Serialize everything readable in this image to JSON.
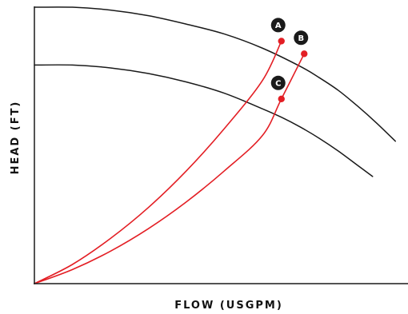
{
  "chart_data": {
    "type": "line",
    "xlabel": "FLOW (USGPM)",
    "ylabel": "HEAD (FT)",
    "grid": false,
    "legend": "none",
    "xlim": [
      0,
      100
    ],
    "ylim": [
      0,
      100
    ],
    "series": [
      {
        "role": "pump-curve",
        "color": "#1a1a1a",
        "x": [
          0,
          10,
          20,
          30,
          40,
          50,
          60,
          70,
          75,
          80,
          85,
          90,
          95
        ],
        "y": [
          98.0,
          98.0,
          97.0,
          95.0,
          92.0,
          88.5,
          83.5,
          77.0,
          73.0,
          68.5,
          63.0,
          57.0,
          50.5
        ]
      },
      {
        "role": "pump-curve",
        "color": "#1a1a1a",
        "x": [
          0,
          10,
          20,
          30,
          40,
          50,
          60,
          65,
          70,
          75,
          80,
          85,
          89
        ],
        "y": [
          77.5,
          77.5,
          76.5,
          74.5,
          71.5,
          67.5,
          62.0,
          59.0,
          55.5,
          51.5,
          47.0,
          42.0,
          38.0
        ]
      },
      {
        "role": "system-curve",
        "color": "#e31e24",
        "x": [
          0,
          10,
          20,
          30,
          40,
          50,
          60,
          65
        ],
        "y": [
          0,
          6.8,
          16.0,
          27.0,
          40.0,
          55.0,
          72.0,
          86.0
        ]
      },
      {
        "role": "system-curve",
        "color": "#e31e24",
        "x": [
          0,
          10,
          20,
          30,
          40,
          50,
          60,
          65,
          71
        ],
        "y": [
          0,
          5.0,
          11.5,
          19.5,
          29.0,
          40.0,
          52.5,
          65.5,
          81.5
        ]
      }
    ],
    "points": [
      {
        "label": "A",
        "x": 65,
        "y": 86.0
      },
      {
        "label": "B",
        "x": 71,
        "y": 81.5
      },
      {
        "label": "C",
        "x": 65,
        "y": 65.5
      }
    ]
  },
  "colors": {
    "axis": "#1a1a1a",
    "pump_curve": "#1a1a1a",
    "system_curve": "#e31e24",
    "point": "#e31e24",
    "badge": "#1a1a1a",
    "badge_text": "#ffffff"
  }
}
